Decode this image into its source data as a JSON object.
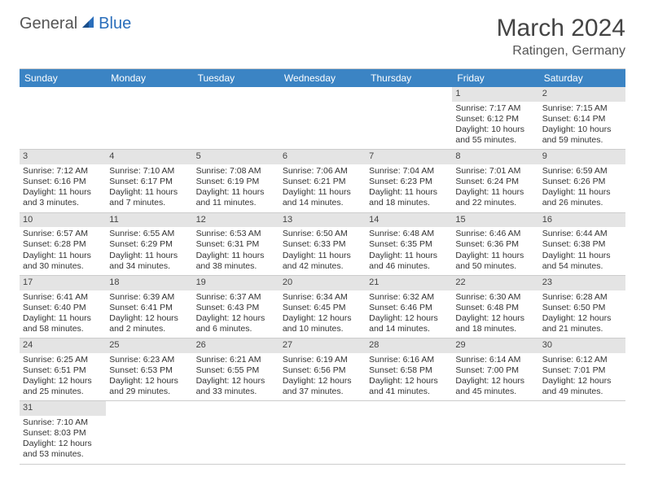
{
  "logo": {
    "text1": "General",
    "text2": "Blue"
  },
  "title": "March 2024",
  "location": "Ratingen, Germany",
  "colors": {
    "header_bg": "#3b84c4",
    "header_text": "#ffffff",
    "daynum_bg": "#e4e4e4",
    "border": "#cccccc",
    "logo_gray": "#555555",
    "logo_blue": "#2a6ebb"
  },
  "dayHeaders": [
    "Sunday",
    "Monday",
    "Tuesday",
    "Wednesday",
    "Thursday",
    "Friday",
    "Saturday"
  ],
  "weeks": [
    [
      null,
      null,
      null,
      null,
      null,
      {
        "n": "1",
        "sr": "Sunrise: 7:17 AM",
        "ss": "Sunset: 6:12 PM",
        "dl": "Daylight: 10 hours and 55 minutes."
      },
      {
        "n": "2",
        "sr": "Sunrise: 7:15 AM",
        "ss": "Sunset: 6:14 PM",
        "dl": "Daylight: 10 hours and 59 minutes."
      }
    ],
    [
      {
        "n": "3",
        "sr": "Sunrise: 7:12 AM",
        "ss": "Sunset: 6:16 PM",
        "dl": "Daylight: 11 hours and 3 minutes."
      },
      {
        "n": "4",
        "sr": "Sunrise: 7:10 AM",
        "ss": "Sunset: 6:17 PM",
        "dl": "Daylight: 11 hours and 7 minutes."
      },
      {
        "n": "5",
        "sr": "Sunrise: 7:08 AM",
        "ss": "Sunset: 6:19 PM",
        "dl": "Daylight: 11 hours and 11 minutes."
      },
      {
        "n": "6",
        "sr": "Sunrise: 7:06 AM",
        "ss": "Sunset: 6:21 PM",
        "dl": "Daylight: 11 hours and 14 minutes."
      },
      {
        "n": "7",
        "sr": "Sunrise: 7:04 AM",
        "ss": "Sunset: 6:23 PM",
        "dl": "Daylight: 11 hours and 18 minutes."
      },
      {
        "n": "8",
        "sr": "Sunrise: 7:01 AM",
        "ss": "Sunset: 6:24 PM",
        "dl": "Daylight: 11 hours and 22 minutes."
      },
      {
        "n": "9",
        "sr": "Sunrise: 6:59 AM",
        "ss": "Sunset: 6:26 PM",
        "dl": "Daylight: 11 hours and 26 minutes."
      }
    ],
    [
      {
        "n": "10",
        "sr": "Sunrise: 6:57 AM",
        "ss": "Sunset: 6:28 PM",
        "dl": "Daylight: 11 hours and 30 minutes."
      },
      {
        "n": "11",
        "sr": "Sunrise: 6:55 AM",
        "ss": "Sunset: 6:29 PM",
        "dl": "Daylight: 11 hours and 34 minutes."
      },
      {
        "n": "12",
        "sr": "Sunrise: 6:53 AM",
        "ss": "Sunset: 6:31 PM",
        "dl": "Daylight: 11 hours and 38 minutes."
      },
      {
        "n": "13",
        "sr": "Sunrise: 6:50 AM",
        "ss": "Sunset: 6:33 PM",
        "dl": "Daylight: 11 hours and 42 minutes."
      },
      {
        "n": "14",
        "sr": "Sunrise: 6:48 AM",
        "ss": "Sunset: 6:35 PM",
        "dl": "Daylight: 11 hours and 46 minutes."
      },
      {
        "n": "15",
        "sr": "Sunrise: 6:46 AM",
        "ss": "Sunset: 6:36 PM",
        "dl": "Daylight: 11 hours and 50 minutes."
      },
      {
        "n": "16",
        "sr": "Sunrise: 6:44 AM",
        "ss": "Sunset: 6:38 PM",
        "dl": "Daylight: 11 hours and 54 minutes."
      }
    ],
    [
      {
        "n": "17",
        "sr": "Sunrise: 6:41 AM",
        "ss": "Sunset: 6:40 PM",
        "dl": "Daylight: 11 hours and 58 minutes."
      },
      {
        "n": "18",
        "sr": "Sunrise: 6:39 AM",
        "ss": "Sunset: 6:41 PM",
        "dl": "Daylight: 12 hours and 2 minutes."
      },
      {
        "n": "19",
        "sr": "Sunrise: 6:37 AM",
        "ss": "Sunset: 6:43 PM",
        "dl": "Daylight: 12 hours and 6 minutes."
      },
      {
        "n": "20",
        "sr": "Sunrise: 6:34 AM",
        "ss": "Sunset: 6:45 PM",
        "dl": "Daylight: 12 hours and 10 minutes."
      },
      {
        "n": "21",
        "sr": "Sunrise: 6:32 AM",
        "ss": "Sunset: 6:46 PM",
        "dl": "Daylight: 12 hours and 14 minutes."
      },
      {
        "n": "22",
        "sr": "Sunrise: 6:30 AM",
        "ss": "Sunset: 6:48 PM",
        "dl": "Daylight: 12 hours and 18 minutes."
      },
      {
        "n": "23",
        "sr": "Sunrise: 6:28 AM",
        "ss": "Sunset: 6:50 PM",
        "dl": "Daylight: 12 hours and 21 minutes."
      }
    ],
    [
      {
        "n": "24",
        "sr": "Sunrise: 6:25 AM",
        "ss": "Sunset: 6:51 PM",
        "dl": "Daylight: 12 hours and 25 minutes."
      },
      {
        "n": "25",
        "sr": "Sunrise: 6:23 AM",
        "ss": "Sunset: 6:53 PM",
        "dl": "Daylight: 12 hours and 29 minutes."
      },
      {
        "n": "26",
        "sr": "Sunrise: 6:21 AM",
        "ss": "Sunset: 6:55 PM",
        "dl": "Daylight: 12 hours and 33 minutes."
      },
      {
        "n": "27",
        "sr": "Sunrise: 6:19 AM",
        "ss": "Sunset: 6:56 PM",
        "dl": "Daylight: 12 hours and 37 minutes."
      },
      {
        "n": "28",
        "sr": "Sunrise: 6:16 AM",
        "ss": "Sunset: 6:58 PM",
        "dl": "Daylight: 12 hours and 41 minutes."
      },
      {
        "n": "29",
        "sr": "Sunrise: 6:14 AM",
        "ss": "Sunset: 7:00 PM",
        "dl": "Daylight: 12 hours and 45 minutes."
      },
      {
        "n": "30",
        "sr": "Sunrise: 6:12 AM",
        "ss": "Sunset: 7:01 PM",
        "dl": "Daylight: 12 hours and 49 minutes."
      }
    ],
    [
      {
        "n": "31",
        "sr": "Sunrise: 7:10 AM",
        "ss": "Sunset: 8:03 PM",
        "dl": "Daylight: 12 hours and 53 minutes."
      },
      null,
      null,
      null,
      null,
      null,
      null
    ]
  ]
}
